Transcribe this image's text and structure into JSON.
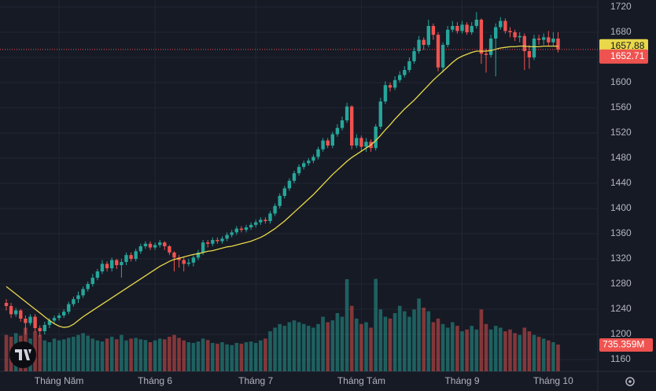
{
  "chart_data": {
    "type": "candlestick",
    "categories": [
      null,
      null,
      null,
      null,
      null,
      null,
      null,
      null,
      null,
      null,
      null,
      "Tháng Năm",
      null,
      null,
      null,
      null,
      null,
      null,
      null,
      null,
      null,
      null,
      null,
      null,
      null,
      null,
      null,
      null,
      null,
      null,
      null,
      "Tháng 6",
      null,
      null,
      null,
      null,
      null,
      null,
      null,
      null,
      null,
      null,
      null,
      null,
      null,
      null,
      null,
      null,
      null,
      null,
      null,
      null,
      "Tháng 7",
      null,
      null,
      null,
      null,
      null,
      null,
      null,
      null,
      null,
      null,
      null,
      null,
      null,
      null,
      null,
      null,
      null,
      null,
      null,
      null,
      null,
      "Tháng Tám",
      null,
      null,
      null,
      null,
      null,
      null,
      null,
      null,
      null,
      null,
      null,
      null,
      null,
      null,
      null,
      null,
      null,
      null,
      null,
      null,
      "Tháng 9",
      null,
      null,
      null,
      null,
      null,
      null,
      null,
      null,
      null,
      null,
      null,
      null,
      null,
      null,
      null,
      null,
      null,
      null,
      "Tháng 10",
      null
    ],
    "open": [
      1250,
      1245,
      1232,
      1238,
      1225,
      1218,
      1228,
      1210,
      1205,
      1215,
      1222,
      1226,
      1230,
      1236,
      1248,
      1256,
      1262,
      1272,
      1280,
      1290,
      1300,
      1312,
      1305,
      1318,
      1310,
      1315,
      1326,
      1320,
      1332,
      1340,
      1344,
      1338,
      1342,
      1346,
      1340,
      1330,
      1322,
      1318,
      1312,
      1314,
      1322,
      1330,
      1346,
      1344,
      1350,
      1348,
      1352,
      1358,
      1362,
      1368,
      1366,
      1370,
      1374,
      1378,
      1382,
      1380,
      1392,
      1404,
      1420,
      1432,
      1444,
      1456,
      1466,
      1472,
      1476,
      1482,
      1494,
      1508,
      1500,
      1518,
      1528,
      1540,
      1562,
      1500,
      1512,
      1498,
      1506,
      1496,
      1530,
      1570,
      1596,
      1592,
      1604,
      1612,
      1620,
      1634,
      1650,
      1668,
      1660,
      1690,
      1676,
      1624,
      1660,
      1684,
      1690,
      1682,
      1692,
      1680,
      1690,
      1700,
      1646,
      1644,
      1670,
      1688,
      1698,
      1682,
      1680,
      1672,
      1674,
      1650,
      1640,
      1670,
      1668,
      1672,
      1664,
      1670
    ],
    "high": [
      1256,
      1250,
      1242,
      1240,
      1230,
      1232,
      1232,
      1214,
      1220,
      1226,
      1230,
      1234,
      1240,
      1252,
      1260,
      1268,
      1276,
      1284,
      1296,
      1304,
      1318,
      1316,
      1322,
      1320,
      1320,
      1330,
      1330,
      1336,
      1344,
      1348,
      1348,
      1346,
      1350,
      1348,
      1342,
      1332,
      1326,
      1322,
      1320,
      1326,
      1334,
      1350,
      1350,
      1354,
      1354,
      1356,
      1362,
      1366,
      1372,
      1372,
      1374,
      1378,
      1382,
      1386,
      1386,
      1396,
      1408,
      1424,
      1436,
      1448,
      1460,
      1470,
      1476,
      1480,
      1486,
      1498,
      1512,
      1512,
      1522,
      1534,
      1546,
      1568,
      1564,
      1518,
      1516,
      1512,
      1510,
      1534,
      1576,
      1602,
      1600,
      1610,
      1618,
      1626,
      1640,
      1656,
      1674,
      1672,
      1700,
      1694,
      1680,
      1664,
      1690,
      1698,
      1696,
      1698,
      1696,
      1696,
      1712,
      1702,
      1654,
      1676,
      1694,
      1704,
      1702,
      1688,
      1684,
      1680,
      1678,
      1660,
      1676,
      1676,
      1678,
      1682,
      1680,
      1680
    ],
    "low": [
      1238,
      1226,
      1228,
      1220,
      1200,
      1214,
      1204,
      1196,
      1200,
      1210,
      1218,
      1222,
      1226,
      1232,
      1244,
      1250,
      1258,
      1268,
      1276,
      1286,
      1296,
      1300,
      1300,
      1304,
      1290,
      1310,
      1316,
      1316,
      1328,
      1336,
      1334,
      1334,
      1338,
      1334,
      1326,
      1300,
      1306,
      1300,
      1308,
      1308,
      1318,
      1326,
      1338,
      1340,
      1344,
      1344,
      1348,
      1354,
      1358,
      1362,
      1362,
      1366,
      1370,
      1374,
      1376,
      1376,
      1388,
      1400,
      1416,
      1428,
      1440,
      1452,
      1462,
      1468,
      1472,
      1478,
      1490,
      1496,
      1496,
      1514,
      1524,
      1536,
      1494,
      1496,
      1492,
      1490,
      1490,
      1492,
      1526,
      1566,
      1586,
      1588,
      1600,
      1608,
      1616,
      1630,
      1646,
      1652,
      1656,
      1668,
      1618,
      1616,
      1656,
      1680,
      1678,
      1678,
      1676,
      1676,
      1686,
      1630,
      1616,
      1640,
      1610,
      1684,
      1678,
      1672,
      1666,
      1664,
      1620,
      1622,
      1636,
      1660,
      1660,
      1658,
      1658,
      1648
    ],
    "close": [
      1245,
      1232,
      1238,
      1225,
      1218,
      1228,
      1210,
      1205,
      1215,
      1222,
      1226,
      1230,
      1236,
      1248,
      1256,
      1262,
      1272,
      1280,
      1290,
      1300,
      1312,
      1305,
      1318,
      1310,
      1315,
      1326,
      1320,
      1332,
      1340,
      1344,
      1338,
      1342,
      1346,
      1340,
      1330,
      1322,
      1318,
      1312,
      1314,
      1322,
      1330,
      1346,
      1344,
      1350,
      1348,
      1352,
      1358,
      1362,
      1368,
      1366,
      1370,
      1374,
      1378,
      1382,
      1380,
      1392,
      1404,
      1420,
      1432,
      1444,
      1456,
      1466,
      1472,
      1476,
      1482,
      1494,
      1508,
      1500,
      1518,
      1528,
      1540,
      1562,
      1500,
      1512,
      1498,
      1506,
      1496,
      1530,
      1570,
      1596,
      1592,
      1604,
      1612,
      1620,
      1634,
      1650,
      1668,
      1660,
      1690,
      1676,
      1624,
      1660,
      1684,
      1690,
      1682,
      1692,
      1680,
      1690,
      1700,
      1646,
      1644,
      1670,
      1688,
      1698,
      1682,
      1680,
      1672,
      1674,
      1650,
      1640,
      1670,
      1668,
      1672,
      1664,
      1670,
      1652.71
    ],
    "ma": [
      1276,
      1270,
      1264,
      1258,
      1252,
      1246,
      1240,
      1234,
      1228,
      1222,
      1217,
      1213,
      1211,
      1212,
      1216,
      1222,
      1228,
      1233,
      1238,
      1243,
      1248,
      1253,
      1258,
      1263,
      1268,
      1273,
      1278,
      1283,
      1288,
      1293,
      1298,
      1303,
      1308,
      1312,
      1316,
      1319,
      1321,
      1323,
      1325,
      1327,
      1328,
      1330,
      1332,
      1333,
      1335,
      1337,
      1339,
      1340,
      1342,
      1344,
      1346,
      1348,
      1351,
      1354,
      1358,
      1363,
      1368,
      1374,
      1380,
      1387,
      1394,
      1401,
      1408,
      1415,
      1422,
      1430,
      1438,
      1446,
      1454,
      1461,
      1468,
      1475,
      1481,
      1486,
      1491,
      1496,
      1501,
      1508,
      1516,
      1525,
      1533,
      1542,
      1550,
      1558,
      1565,
      1572,
      1580,
      1588,
      1596,
      1604,
      1611,
      1618,
      1625,
      1632,
      1638,
      1642,
      1645,
      1648,
      1650,
      1650,
      1650,
      1651,
      1653,
      1655,
      1656,
      1657,
      1657,
      1658,
      1658,
      1657,
      1657,
      1657,
      1658,
      1658,
      1658,
      1657.88
    ],
    "ma_color": "#e8d84a",
    "up_color": "#26a69a",
    "down_color": "#ef5350",
    "volume": {
      "values": [
        1000,
        950,
        1050,
        980,
        1200,
        900,
        1100,
        1000,
        850,
        800,
        900,
        850,
        880,
        920,
        950,
        1000,
        1050,
        980,
        900,
        850,
        820,
        900,
        950,
        880,
        1000,
        850,
        900,
        920,
        880,
        860,
        800,
        850,
        900,
        880,
        950,
        1000,
        920,
        850,
        800,
        780,
        820,
        900,
        860,
        780,
        760,
        800,
        740,
        720,
        780,
        760,
        800,
        820,
        780,
        850,
        900,
        1100,
        1200,
        1300,
        1250,
        1350,
        1400,
        1350,
        1300,
        1250,
        1200,
        1300,
        1500,
        1350,
        1400,
        1600,
        1500,
        2530,
        1800,
        1450,
        1300,
        1350,
        1200,
        2540,
        1700,
        1500,
        1450,
        1600,
        1800,
        1650,
        1500,
        1700,
        2000,
        1750,
        1650,
        1350,
        1450,
        1300,
        1200,
        1350,
        1250,
        1100,
        1150,
        1250,
        1150,
        1700,
        1300,
        1150,
        1250,
        1200,
        1100,
        1150,
        1050,
        1000,
        1200,
        1100,
        1000,
        950,
        900,
        850,
        800,
        735.359
      ],
      "last_label": "735.359M",
      "vlim": [
        0,
        10200
      ]
    },
    "ylim": [
      1141.25,
      1731.25
    ],
    "yticks": [
      1160,
      1200,
      1240,
      1280,
      1320,
      1360,
      1400,
      1440,
      1480,
      1520,
      1560,
      1600,
      1640,
      1680,
      1720
    ],
    "grid": true
  }
}
